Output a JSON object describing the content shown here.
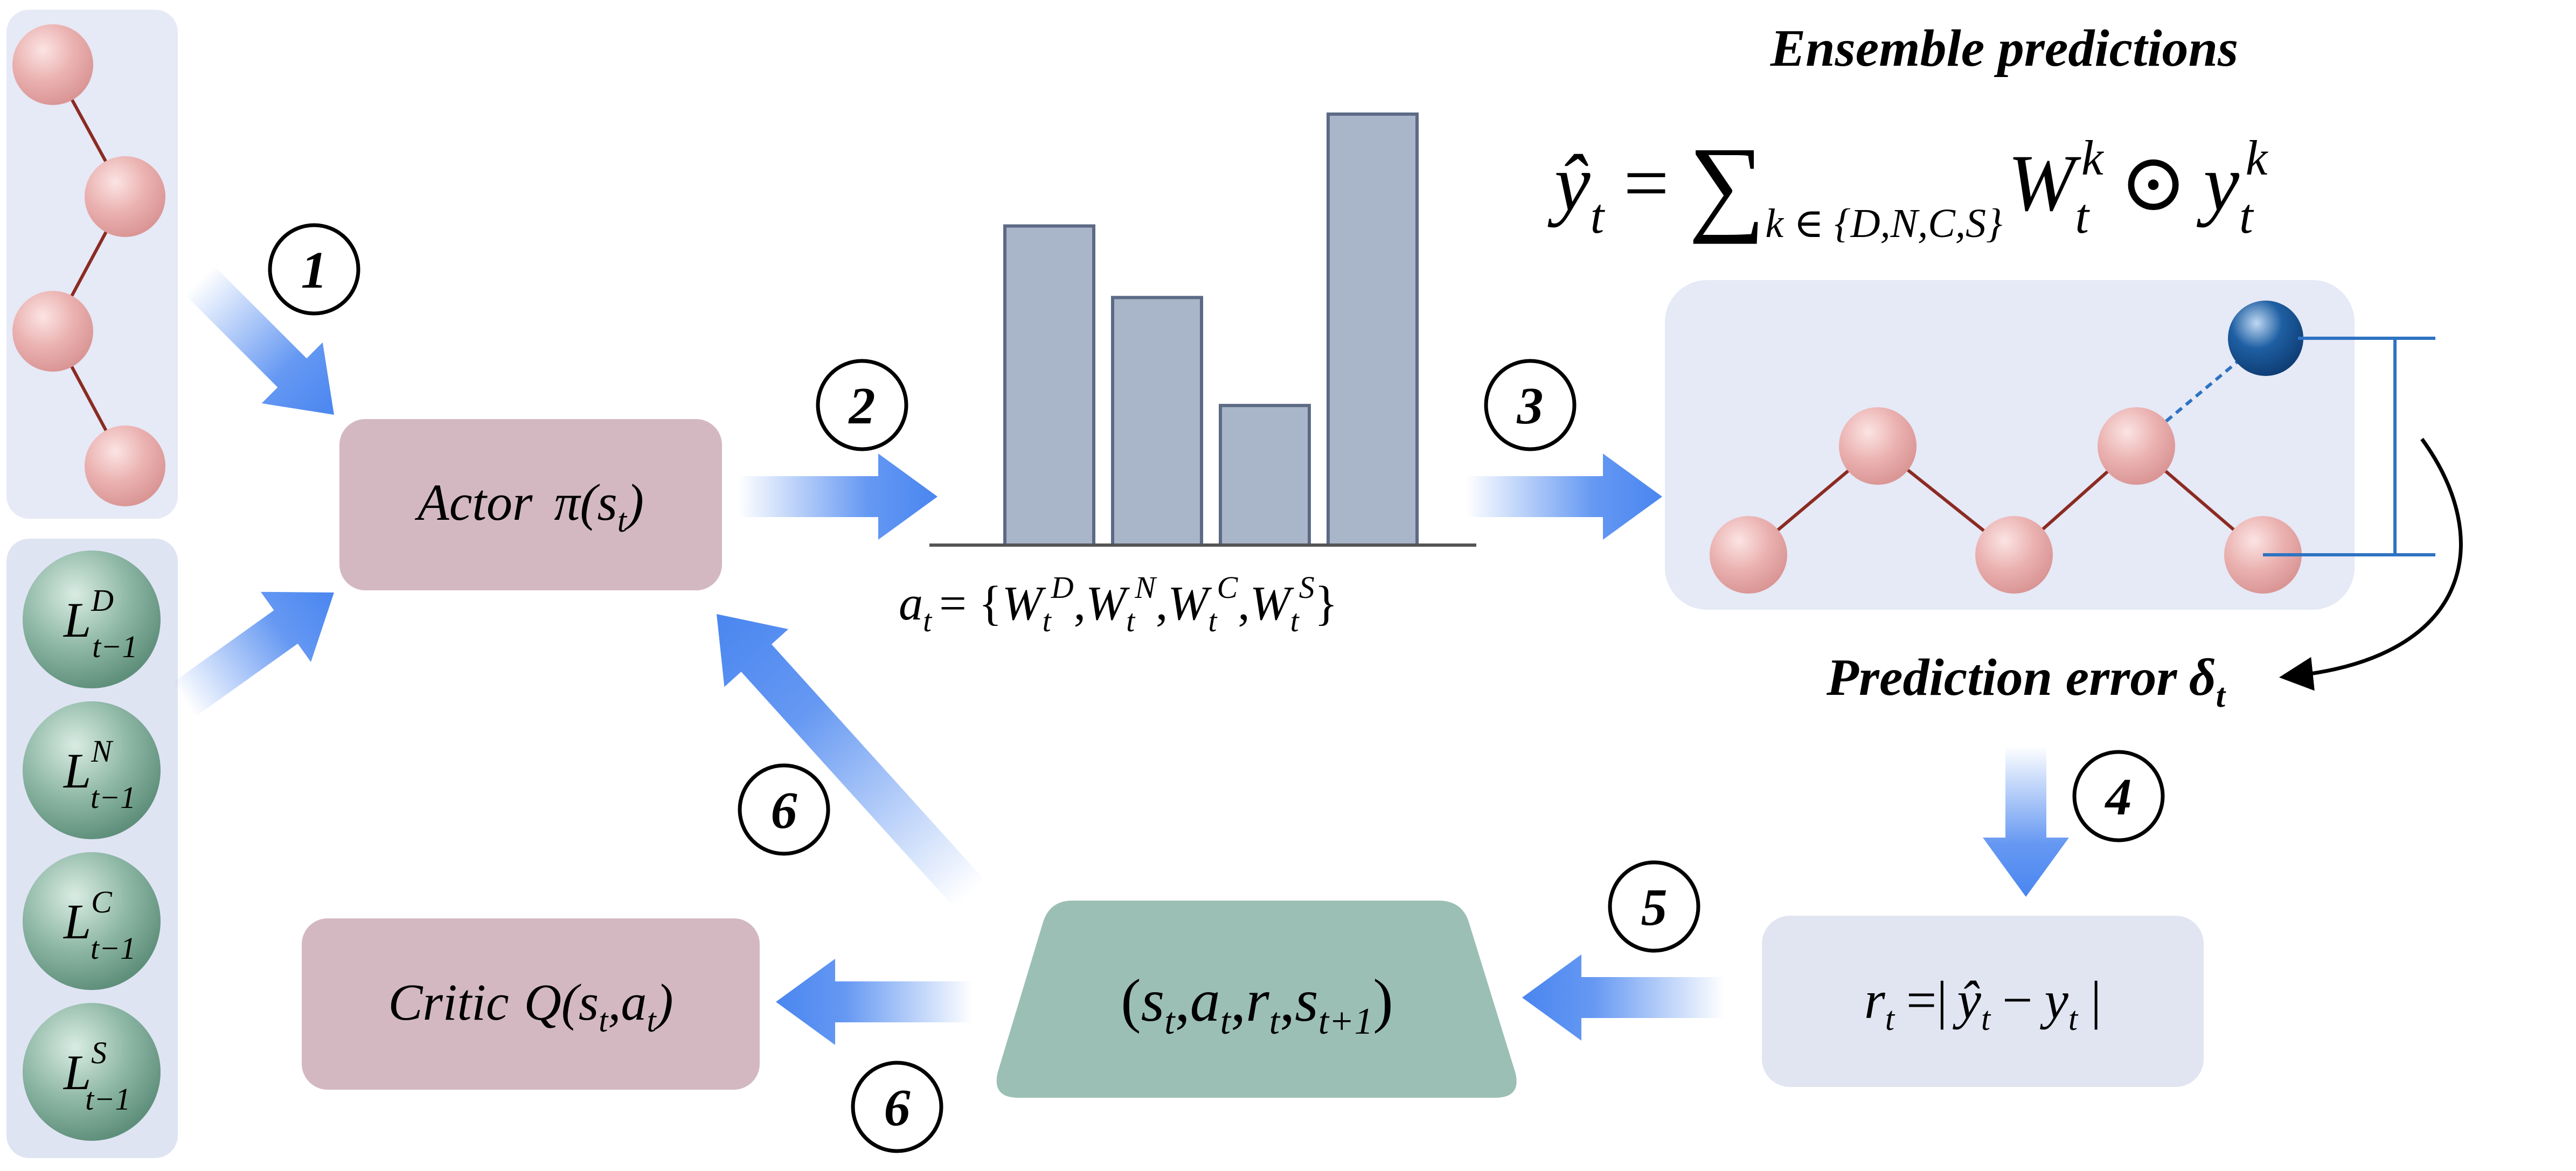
{
  "title": "Ensemble predictions",
  "step_markers": [
    "1",
    "2",
    "3",
    "4",
    "5",
    "6",
    "6"
  ],
  "actor": {
    "prefix": "Actor",
    "symbol": "π",
    "arg_var": "s",
    "arg_sub": "t"
  },
  "critic": {
    "prefix": "Critic",
    "symbol": "Q",
    "arg1_var": "s",
    "arg1_sub": "t",
    "arg2_var": "a",
    "arg2_sub": "t"
  },
  "weights": {
    "lhs_var": "a",
    "lhs_sub": "t",
    "w_var": "W",
    "w_sub": "t",
    "sups": [
      "D",
      "N",
      "C",
      "S"
    ]
  },
  "weight_bars": {
    "relative_heights": [
      0.736,
      0.571,
      0.322,
      0.994
    ],
    "bar_color": "#a9b5c8",
    "edge_color": "#5c6a85"
  },
  "ensemble_formula": {
    "yhat": "ŷ",
    "sub_t": "t",
    "eq": "=",
    "sum": "∑",
    "range": "k ∈ {D,N,C,S}",
    "W": "W",
    "sup_k": "k",
    "odot": "⊙",
    "y": "y"
  },
  "prediction_error": {
    "label": "Prediction error",
    "symbol": "δ",
    "sub": "t"
  },
  "reward": {
    "r": "r",
    "sub_t": "t",
    "eq": "=",
    "bar": "|",
    "yhat": "ŷ",
    "minus": "−",
    "y": "y"
  },
  "transition": {
    "s": "s",
    "t": "t",
    "a": "a",
    "r": "r",
    "t1": "t+1"
  },
  "loss_nodes": {
    "var": "L",
    "sub": "t−1",
    "sups": [
      "D",
      "N",
      "C",
      "S"
    ]
  },
  "colors": {
    "actor_box": "#d3b8c2",
    "critic_box": "#d3b8c2",
    "transition_box": "#9bbfb4",
    "reward_box": "#e1e5f1",
    "panel": "#e6e9f6",
    "pink_node": "#eab1b0",
    "green_node": "#8fb8a6",
    "blue_node": "#1e5fa3",
    "arrow_blue": "#4a86f0",
    "edge_red": "#8b2b22",
    "bracket_blue": "#2e73c2"
  }
}
